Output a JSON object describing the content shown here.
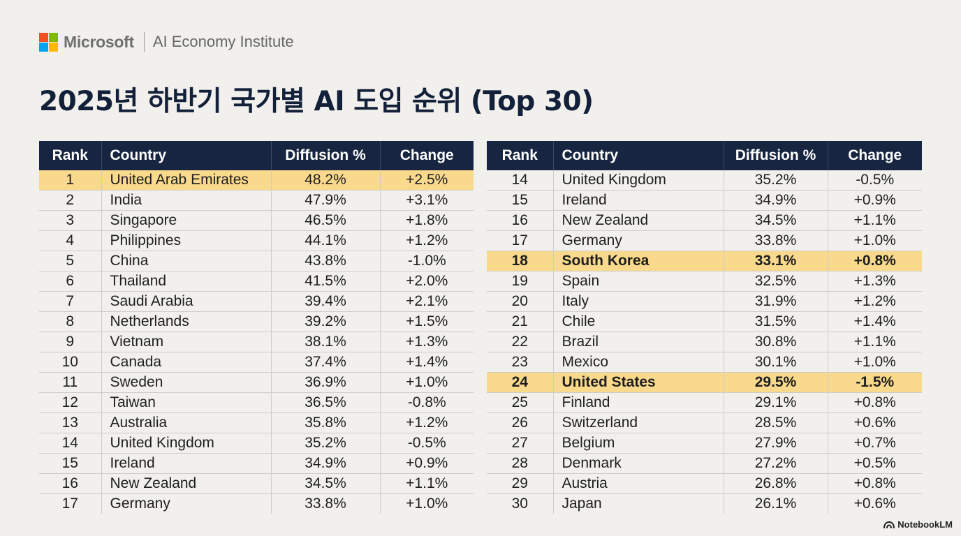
{
  "brand": {
    "logo_colors": [
      "#f25022",
      "#7fba00",
      "#00a4ef",
      "#ffb900"
    ],
    "name": "Microsoft",
    "subtitle": "AI Economy Institute"
  },
  "title": "2025년 하반기 국가별 AI 도입 순위 (Top 30)",
  "table_headers": {
    "rank": "Rank",
    "country": "Country",
    "diffusion": "Diffusion %",
    "change": "Change"
  },
  "colors": {
    "header_bg": "#172540",
    "highlight": "#f9d98c",
    "background": "#f1f0ec"
  },
  "left_table": [
    {
      "rank": "1",
      "country": "United Arab Emirates",
      "diffusion": "48.2%",
      "change": "+2.5%",
      "highlight": true,
      "bold": false
    },
    {
      "rank": "2",
      "country": "India",
      "diffusion": "47.9%",
      "change": "+3.1%"
    },
    {
      "rank": "3",
      "country": "Singapore",
      "diffusion": "46.5%",
      "change": "+1.8%"
    },
    {
      "rank": "4",
      "country": "Philippines",
      "diffusion": "44.1%",
      "change": "+1.2%"
    },
    {
      "rank": "5",
      "country": "China",
      "diffusion": "43.8%",
      "change": "-1.0%"
    },
    {
      "rank": "6",
      "country": "Thailand",
      "diffusion": "41.5%",
      "change": "+2.0%"
    },
    {
      "rank": "7",
      "country": "Saudi Arabia",
      "diffusion": "39.4%",
      "change": "+2.1%"
    },
    {
      "rank": "8",
      "country": "Netherlands",
      "diffusion": "39.2%",
      "change": "+1.5%"
    },
    {
      "rank": "9",
      "country": "Vietnam",
      "diffusion": "38.1%",
      "change": "+1.3%"
    },
    {
      "rank": "10",
      "country": "Canada",
      "diffusion": "37.4%",
      "change": "+1.4%"
    },
    {
      "rank": "11",
      "country": "Sweden",
      "diffusion": "36.9%",
      "change": "+1.0%"
    },
    {
      "rank": "12",
      "country": "Taiwan",
      "diffusion": "36.5%",
      "change": "-0.8%"
    },
    {
      "rank": "13",
      "country": "Australia",
      "diffusion": "35.8%",
      "change": "+1.2%"
    },
    {
      "rank": "14",
      "country": "United Kingdom",
      "diffusion": "35.2%",
      "change": "-0.5%"
    },
    {
      "rank": "15",
      "country": "Ireland",
      "diffusion": "34.9%",
      "change": "+0.9%"
    },
    {
      "rank": "16",
      "country": "New Zealand",
      "diffusion": "34.5%",
      "change": "+1.1%"
    },
    {
      "rank": "17",
      "country": "Germany",
      "diffusion": "33.8%",
      "change": "+1.0%"
    }
  ],
  "right_table": [
    {
      "rank": "14",
      "country": "United Kingdom",
      "diffusion": "35.2%",
      "change": "-0.5%"
    },
    {
      "rank": "15",
      "country": "Ireland",
      "diffusion": "34.9%",
      "change": "+0.9%"
    },
    {
      "rank": "16",
      "country": "New Zealand",
      "diffusion": "34.5%",
      "change": "+1.1%"
    },
    {
      "rank": "17",
      "country": "Germany",
      "diffusion": "33.8%",
      "change": "+1.0%"
    },
    {
      "rank": "18",
      "country": "South Korea",
      "diffusion": "33.1%",
      "change": "+0.8%",
      "highlight": true,
      "bold": true
    },
    {
      "rank": "19",
      "country": "Spain",
      "diffusion": "32.5%",
      "change": "+1.3%"
    },
    {
      "rank": "20",
      "country": "Italy",
      "diffusion": "31.9%",
      "change": "+1.2%"
    },
    {
      "rank": "21",
      "country": "Chile",
      "diffusion": "31.5%",
      "change": "+1.4%"
    },
    {
      "rank": "22",
      "country": "Brazil",
      "diffusion": "30.8%",
      "change": "+1.1%"
    },
    {
      "rank": "23",
      "country": "Mexico",
      "diffusion": "30.1%",
      "change": "+1.0%"
    },
    {
      "rank": "24",
      "country": "United States",
      "diffusion": "29.5%",
      "change": "-1.5%",
      "highlight": true,
      "bold": true
    },
    {
      "rank": "25",
      "country": "Finland",
      "diffusion": "29.1%",
      "change": "+0.8%"
    },
    {
      "rank": "26",
      "country": "Switzerland",
      "diffusion": "28.5%",
      "change": "+0.6%"
    },
    {
      "rank": "27",
      "country": "Belgium",
      "diffusion": "27.9%",
      "change": "+0.7%"
    },
    {
      "rank": "28",
      "country": "Denmark",
      "diffusion": "27.2%",
      "change": "+0.5%"
    },
    {
      "rank": "29",
      "country": "Austria",
      "diffusion": "26.8%",
      "change": "+0.8%"
    },
    {
      "rank": "30",
      "country": "Japan",
      "diffusion": "26.1%",
      "change": "+0.6%"
    }
  ],
  "footer": {
    "label": "NotebookLM",
    "icon": "notebooklm-icon"
  }
}
